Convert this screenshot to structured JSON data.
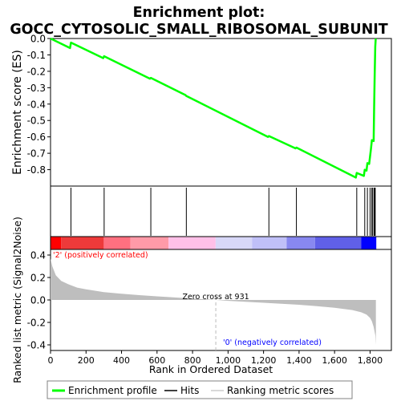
{
  "chart_data": {
    "type": "line",
    "title": "Enrichment plot:",
    "subtitle": "GOCC_CYTOSOLIC_SMALL_RIBOSOMAL_SUBUNIT",
    "colors": {
      "es_line": "#00ff00",
      "hits": "#000000",
      "metric_fill": "#bebebe",
      "positive_label": "#ff0000",
      "negative_label": "#0000ff",
      "panel_border": "#000000",
      "grid": "#dddddd"
    },
    "es_panel": {
      "ylabel": "Enrichment score (ES)",
      "ylim": [
        -0.9,
        0.0
      ],
      "yticks": [
        "0.0",
        "-0.1",
        "-0.2",
        "-0.3",
        "-0.4",
        "-0.5",
        "-0.6",
        "-0.7",
        "-0.8"
      ],
      "series": [
        {
          "name": "Enrichment profile",
          "x": [
            0,
            110,
            115,
            297,
            302,
            560,
            565,
            760,
            765,
            1225,
            1230,
            1380,
            1385,
            1720,
            1725,
            1765,
            1770,
            1780,
            1785,
            1795,
            1800,
            1805,
            1810,
            1820,
            1823,
            1826,
            1829,
            1832
          ],
          "y": [
            0.0,
            -0.058,
            -0.025,
            -0.12,
            -0.108,
            -0.245,
            -0.24,
            -0.345,
            -0.35,
            -0.6,
            -0.595,
            -0.67,
            -0.665,
            -0.848,
            -0.82,
            -0.838,
            -0.8,
            -0.806,
            -0.76,
            -0.765,
            -0.72,
            -0.675,
            -0.62,
            -0.625,
            -0.42,
            -0.22,
            -0.05,
            0.0
          ]
        }
      ]
    },
    "hits_panel": {
      "hits": [
        115,
        302,
        565,
        765,
        1230,
        1385,
        1725,
        1770,
        1785,
        1800,
        1810,
        1815,
        1823,
        1826,
        1829
      ]
    },
    "rank_bar": {
      "colors": [
        "#ff0000",
        "#ee3a3a",
        "#ff7080",
        "#ff9aa8",
        "#ffc0e8",
        "#d8d8f8",
        "#c0c0f8",
        "#8888f0",
        "#6060e8",
        "#0000ff"
      ],
      "bounds": [
        0,
        60,
        300,
        450,
        665,
        930,
        1135,
        1330,
        1490,
        1750,
        1835
      ]
    },
    "metric_panel": {
      "ylabel": "Ranked list metric (Signal2Noise)",
      "xlabel": "Rank in Ordered Dataset",
      "ylim": [
        -0.45,
        0.45
      ],
      "yticks": [
        "0.4",
        "0.2",
        "0.0",
        "-0.2",
        "-0.4"
      ],
      "xlim": [
        0,
        1920
      ],
      "xticks": [
        "0",
        "200",
        "400",
        "600",
        "800",
        "1,000",
        "1,200",
        "1,400",
        "1,600",
        "1,800"
      ],
      "profile_x": [
        0,
        10,
        30,
        60,
        100,
        150,
        200,
        300,
        400,
        500,
        600,
        700,
        800,
        931,
        1000,
        1200,
        1400,
        1500,
        1600,
        1700,
        1750,
        1780,
        1800,
        1810,
        1820,
        1830,
        1833
      ],
      "profile_y": [
        0.37,
        0.3,
        0.22,
        0.17,
        0.14,
        0.11,
        0.095,
        0.07,
        0.055,
        0.043,
        0.032,
        0.022,
        0.013,
        0.0,
        -0.008,
        -0.025,
        -0.043,
        -0.055,
        -0.07,
        -0.09,
        -0.11,
        -0.13,
        -0.16,
        -0.19,
        -0.24,
        -0.32,
        -0.4
      ],
      "zero_cross_x": 931,
      "zero_cross_label": "Zero cross at 931",
      "positive_label": "'2' (positively correlated)",
      "negative_label": "'0' (negatively correlated)"
    },
    "legend": {
      "placement": "bottom",
      "entries": [
        "Enrichment profile",
        "Hits",
        "Ranking metric scores"
      ]
    }
  }
}
